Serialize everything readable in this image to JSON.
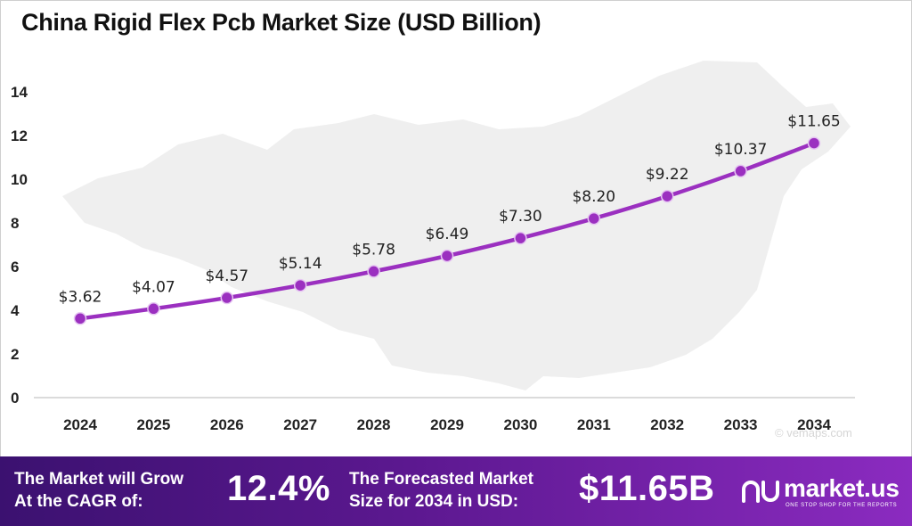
{
  "title": "China Rigid Flex Pcb Market Size (USD Billion)",
  "colors": {
    "line": "#9b30c0",
    "marker": "#9b30c0",
    "axis": "#cfcfcf",
    "map": "#efefef"
  },
  "watermark": "© vemaps.com",
  "chart_data": {
    "type": "line",
    "categories": [
      "2024",
      "2025",
      "2026",
      "2027",
      "2028",
      "2029",
      "2030",
      "2031",
      "2032",
      "2033",
      "2034"
    ],
    "series": [
      {
        "values": [
          3.62,
          4.07,
          4.57,
          5.14,
          5.78,
          6.49,
          7.3,
          8.2,
          9.22,
          10.37,
          11.65
        ]
      }
    ],
    "data_labels": [
      "$3.62",
      "$4.07",
      "$4.57",
      "$5.14",
      "$5.78",
      "$6.49",
      "$7.30",
      "$8.20",
      "$9.22",
      "$10.37",
      "$11.65"
    ],
    "yticks": [
      0,
      2,
      4,
      6,
      8,
      10,
      12,
      14
    ],
    "ylim": [
      0,
      14
    ],
    "xlabel": "",
    "ylabel": "",
    "grid": false
  },
  "footer": {
    "cagr_text": "The Market will Grow\nAt the CAGR of:",
    "cagr_value": "12.4%",
    "forecast_text": "The Forecasted Market\nSize for 2034 in USD:",
    "forecast_value": "$11.65B",
    "logo_name": "market.us",
    "logo_tagline": "ONE STOP SHOP FOR THE REPORTS",
    "logo_icon": "market-us-logo-icon"
  }
}
